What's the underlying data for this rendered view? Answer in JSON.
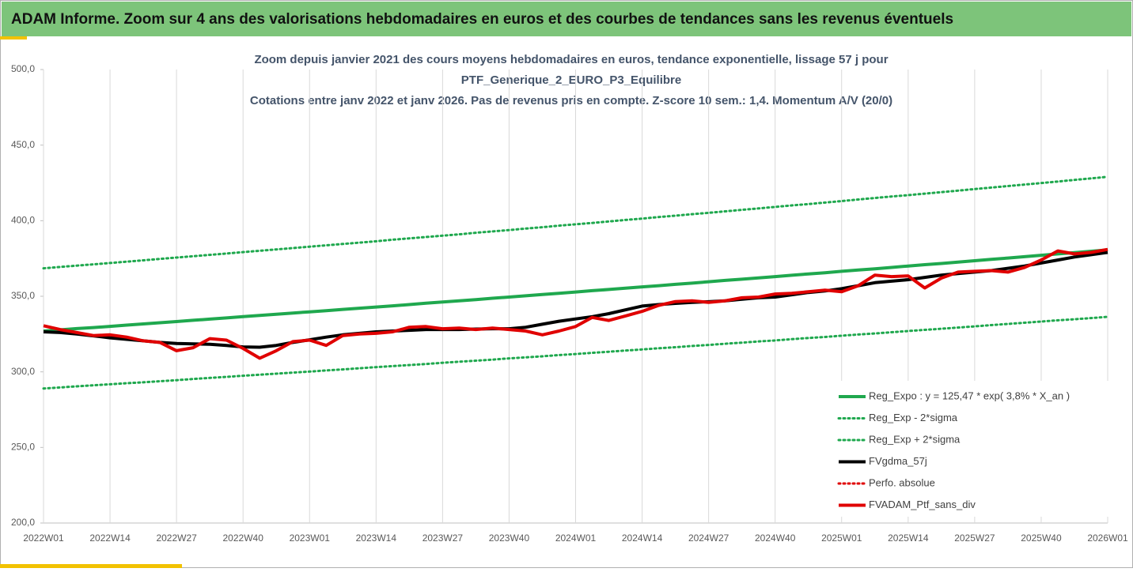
{
  "header": {
    "title": "ADAM Informe. Zoom sur 4 ans des valorisations hebdomadaires en euros et des courbes de tendances sans les revenus éventuels"
  },
  "chart_data": {
    "type": "line",
    "title": [
      "Zoom depuis janvier 2021 des cours moyens hebdomadaires  en euros, tendance exponentielle, lissage 57 j pour",
      "PTF_Generique_2_EURO_P3_Equilibre",
      "Cotations entre janv 2022 et janv 2026. Pas de revenus pris en compte. Z-score 10 sem.: 1,4. Momentum A/V (20/0)"
    ],
    "categories": [
      "2022W01",
      null,
      null,
      null,
      "2022W14",
      null,
      null,
      null,
      "2022W27",
      null,
      null,
      null,
      "2022W40",
      null,
      null,
      null,
      "2023W01",
      null,
      null,
      null,
      "2023W14",
      null,
      null,
      null,
      "2023W27",
      null,
      null,
      null,
      "2023W40",
      null,
      null,
      null,
      "2024W01",
      null,
      null,
      null,
      "2024W14",
      null,
      null,
      null,
      "2024W27",
      null,
      null,
      null,
      "2024W40",
      null,
      null,
      null,
      "2025W01",
      null,
      null,
      null,
      "2025W14",
      null,
      null,
      null,
      "2025W27",
      null,
      null,
      null,
      "2025W40",
      null,
      null,
      null,
      "2026W01"
    ],
    "ylim": [
      200,
      500
    ],
    "yticks": [
      {
        "value": 200,
        "label": "200,0"
      },
      {
        "value": 250,
        "label": "250,0"
      },
      {
        "value": 300,
        "label": "300,0"
      },
      {
        "value": 350,
        "label": "350,0"
      },
      {
        "value": 400,
        "label": "400,0"
      },
      {
        "value": 450,
        "label": "450,0"
      },
      {
        "value": 500,
        "label": "500,0"
      }
    ],
    "xgrid": true,
    "legend": "lower-right",
    "series": [
      {
        "name": "Reg_Expo : y = 125,47 * exp( 3,8% *  X_an )",
        "color": "#1fa84e",
        "dash": "solid",
        "values": [
          327.0,
          327.8,
          328.6,
          329.3,
          330.1,
          330.9,
          331.7,
          332.5,
          333.3,
          334.1,
          334.9,
          335.7,
          336.5,
          337.3,
          338.1,
          338.9,
          339.7,
          340.5,
          341.3,
          342.1,
          342.9,
          343.7,
          344.5,
          345.4,
          346.2,
          347.0,
          347.8,
          348.7,
          349.5,
          350.3,
          351.2,
          352.0,
          352.8,
          353.7,
          354.5,
          355.4,
          356.2,
          357.0,
          357.9,
          358.7,
          359.6,
          360.5,
          361.3,
          362.2,
          363.0,
          363.9,
          364.8,
          365.6,
          366.5,
          367.4,
          368.2,
          369.1,
          370.0,
          370.9,
          371.7,
          372.6,
          373.5,
          374.4,
          375.3,
          376.2,
          377.1,
          378.0,
          378.9,
          379.8,
          380.7
        ]
      },
      {
        "name": "Reg_Exp - 2*sigma",
        "color": "#1fa84e",
        "dash": "dot",
        "values": [
          289.0,
          289.7,
          290.4,
          291.1,
          291.8,
          292.5,
          293.1,
          293.8,
          294.5,
          295.3,
          296.0,
          296.7,
          297.4,
          298.1,
          298.8,
          299.5,
          300.2,
          300.9,
          301.6,
          302.4,
          303.1,
          303.8,
          304.5,
          305.2,
          306.0,
          306.7,
          307.4,
          308.1,
          308.9,
          309.6,
          310.3,
          311.1,
          311.8,
          312.6,
          313.3,
          314.1,
          314.8,
          315.6,
          316.3,
          317.1,
          317.8,
          318.6,
          319.3,
          320.1,
          320.8,
          321.6,
          322.4,
          323.1,
          323.9,
          324.7,
          325.4,
          326.2,
          327.0,
          327.8,
          328.5,
          329.3,
          330.1,
          330.9,
          331.7,
          332.5,
          333.3,
          334.1,
          334.8,
          335.6,
          336.4
        ]
      },
      {
        "name": "Reg_Exp + 2*sigma",
        "color": "#1fa84e",
        "dash": "dot",
        "values": [
          368.5,
          369.4,
          370.3,
          371.1,
          372.0,
          372.9,
          373.8,
          374.7,
          375.6,
          376.5,
          377.4,
          378.3,
          379.2,
          380.1,
          381.0,
          381.9,
          382.8,
          383.7,
          384.6,
          385.5,
          386.4,
          387.4,
          388.3,
          389.2,
          390.1,
          391.0,
          392.0,
          392.9,
          393.8,
          394.8,
          395.7,
          396.7,
          397.6,
          398.5,
          399.5,
          400.5,
          401.4,
          402.4,
          403.3,
          404.3,
          405.2,
          406.2,
          407.2,
          408.1,
          409.1,
          410.1,
          411.0,
          412.0,
          413.0,
          414.0,
          415.0,
          416.0,
          416.9,
          417.9,
          418.9,
          419.9,
          420.9,
          421.9,
          422.9,
          423.9,
          424.9,
          425.9,
          427.0,
          428.0,
          429.0
        ]
      },
      {
        "name": "FVgdma_57j",
        "color": "#000000",
        "dash": "solid",
        "values": [
          326.5,
          326,
          325,
          323.8,
          322.5,
          321.5,
          320.5,
          319.5,
          318.8,
          318.5,
          318.3,
          317.5,
          316.5,
          316.3,
          317.5,
          319.5,
          321.2,
          323,
          324.5,
          325.5,
          326.5,
          327,
          327.5,
          328,
          328,
          328,
          328.3,
          328.5,
          328.5,
          329.5,
          331.5,
          333.5,
          335,
          336.5,
          338.5,
          341,
          343.5,
          344.5,
          345.3,
          346,
          346.4,
          347,
          348,
          349,
          349.5,
          351,
          352.5,
          353.5,
          355,
          357,
          359,
          360,
          361,
          362.5,
          364,
          365,
          366,
          367,
          368.5,
          370,
          372,
          374,
          376,
          377.5,
          379
        ]
      },
      {
        "name": "Perfo. absolue",
        "color": "#e00000",
        "dash": "dot",
        "values": [
          null,
          null,
          null,
          null,
          null,
          null,
          null,
          null,
          null,
          null,
          null,
          null,
          null,
          null,
          null,
          null,
          null,
          null,
          null,
          null,
          null,
          null,
          null,
          null,
          null,
          null,
          null,
          null,
          null,
          null,
          null,
          null,
          null,
          null,
          null,
          null,
          null,
          null,
          null,
          null,
          null,
          null,
          null,
          null,
          null,
          null,
          null,
          null,
          null,
          null,
          null,
          null,
          null,
          null,
          null,
          null,
          null,
          null,
          null,
          null,
          null,
          null,
          null,
          null,
          null
        ]
      },
      {
        "name": "FVADAM_Ptf_sans_div",
        "color": "#e00000",
        "dash": "solid",
        "values": [
          330.5,
          328,
          326,
          324,
          324.5,
          323,
          320.5,
          319.5,
          314,
          316,
          322,
          321,
          315.5,
          309,
          314,
          320,
          321,
          317.5,
          324,
          325,
          325.5,
          326.5,
          329.5,
          330,
          328.5,
          329,
          328,
          329,
          328,
          327,
          324.5,
          327,
          330,
          336,
          334,
          337,
          340,
          344,
          346.5,
          347,
          346,
          347,
          349,
          349.5,
          351.5,
          352,
          353,
          354,
          353,
          357,
          364,
          363,
          363.5,
          355.5,
          362,
          366,
          366.5,
          367,
          366,
          369,
          374,
          380,
          378,
          379,
          381
        ]
      }
    ]
  }
}
